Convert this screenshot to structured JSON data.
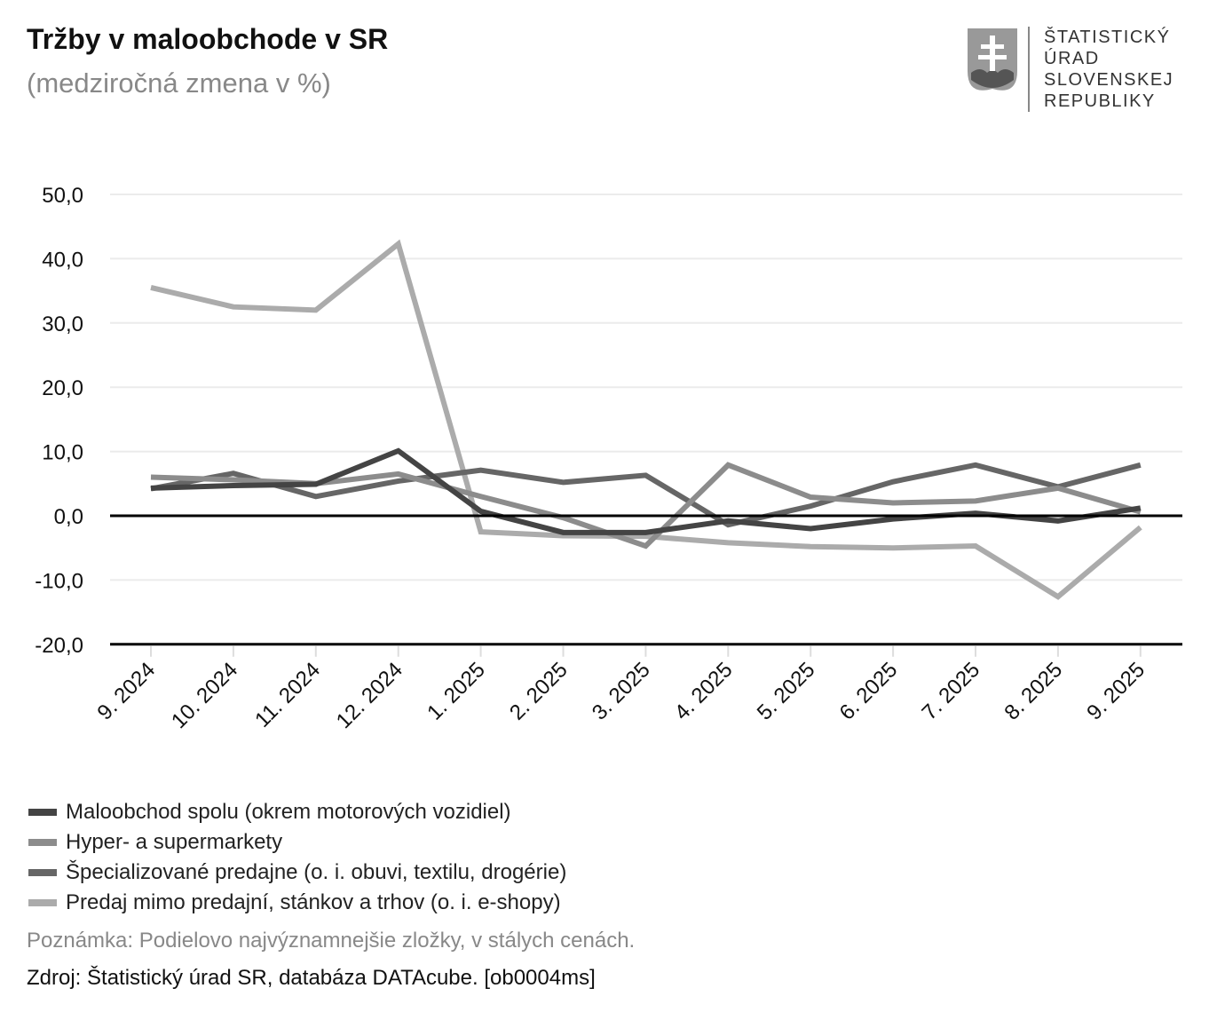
{
  "header": {
    "title": "Tržby v maloobchode v SR",
    "subtitle": "(medziročná zmena v %)"
  },
  "logo": {
    "text_lines": [
      "ŠTATISTICKÝ",
      "ÚRAD",
      "SLOVENSKEJ",
      "REPUBLIKY"
    ],
    "icon": "slovak-coat-of-arms"
  },
  "chart_data": {
    "type": "line",
    "title": "Tržby v maloobchode v SR",
    "subtitle": "(medziročná zmena v %)",
    "categories": [
      "9. 2024",
      "10. 2024",
      "11. 2024",
      "12. 2024",
      "1. 2025",
      "2. 2025",
      "3. 2025",
      "4. 2025",
      "5. 2025",
      "6. 2025",
      "7. 2025",
      "8. 2025",
      "9. 2025"
    ],
    "yticks": [
      "50,0",
      "40,0",
      "30,0",
      "20,0",
      "10,0",
      "0,0",
      "-10,0",
      "-20,0"
    ],
    "ylim": [
      -20,
      50
    ],
    "grid": true,
    "legend_position": "bottom-left",
    "series": [
      {
        "name": "Maloobchod spolu (okrem motorových vozidiel)",
        "color": "#444444",
        "values": [
          4.3,
          4.7,
          4.9,
          10.1,
          0.7,
          -2.6,
          -2.6,
          -0.8,
          -2.0,
          -0.5,
          0.4,
          -0.8,
          1.2
        ]
      },
      {
        "name": "Hyper- a supermarkety",
        "color": "#8c8c8c",
        "values": [
          6.0,
          5.6,
          5.0,
          6.5,
          3.0,
          -0.3,
          -4.7,
          7.9,
          2.9,
          2.0,
          2.3,
          4.3,
          0.6
        ]
      },
      {
        "name": "Špecializované predajne (o. i. obuvi, textilu, drogérie)",
        "color": "#666666",
        "values": [
          4.2,
          6.6,
          3.0,
          5.4,
          7.1,
          5.2,
          6.3,
          -1.4,
          1.5,
          5.3,
          7.9,
          4.5,
          7.9
        ]
      },
      {
        "name": "Predaj mimo predajní, stánkov a trhov (o. i. e-shopy)",
        "color": "#ababab",
        "values": [
          35.5,
          32.5,
          32.0,
          42.3,
          -2.5,
          -3.1,
          -3.2,
          -4.2,
          -4.8,
          -5.0,
          -4.7,
          -12.6,
          -1.8
        ]
      }
    ]
  },
  "footer": {
    "note": "Poznámka: Podielovo najvýznamnejšie zložky, v stálych cenách.",
    "source": "Zdroj: Štatistický úrad SR, databáza DATAcube. [ob0004ms]"
  }
}
